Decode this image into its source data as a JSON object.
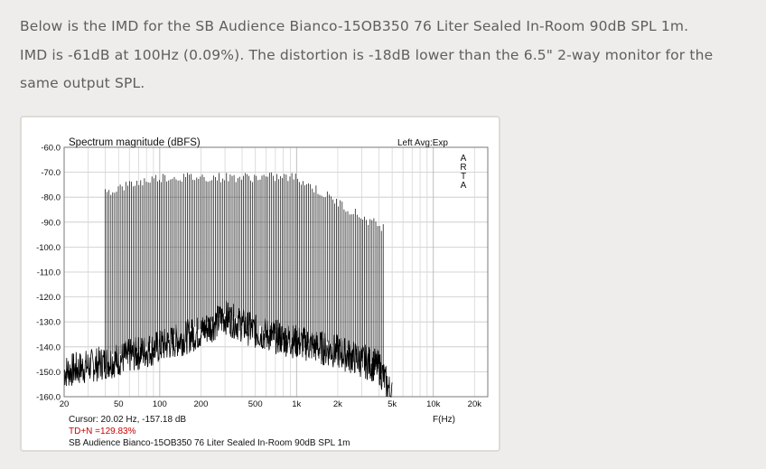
{
  "intro": {
    "line1": "Below is the IMD for the SB Audience Bianco-15OB350 76 Liter Sealed In-Room 90dB SPL 1m.",
    "line2": "IMD is -61dB at 100Hz (0.09%). The distortion is -18dB lower than the 6.5\" 2-way monitor for the",
    "line3": "same output SPL."
  },
  "chart_data": {
    "type": "line",
    "title": "Spectrum magnitude (dBFS)",
    "mode_label": "Left Avg:Exp",
    "brand_label": "ARTA",
    "xlabel": "F(Hz)",
    "ylabel": "",
    "x_scale": "log",
    "xlim": [
      20,
      25000
    ],
    "ylim": [
      -160,
      -60
    ],
    "grid": true,
    "y_ticks": [
      "-60.0",
      "-70.0",
      "-80.0",
      "-90.0",
      "-100.0",
      "-110.0",
      "-120.0",
      "-130.0",
      "-140.0",
      "-150.0",
      "-160.0"
    ],
    "y_tick_values": [
      -60,
      -70,
      -80,
      -90,
      -100,
      -110,
      -120,
      -130,
      -140,
      -150,
      -160
    ],
    "x_ticks": [
      "20",
      "50",
      "100",
      "200",
      "500",
      "1k",
      "2k",
      "5k",
      "10k",
      "20k"
    ],
    "x_tick_values": [
      20,
      50,
      100,
      200,
      500,
      1000,
      2000,
      5000,
      10000,
      20000
    ],
    "cursor_text": "Cursor: 20.02 Hz, -157.18 dB",
    "tdn_text": "TD+N =129.83%",
    "caption": "SB Audience Bianco-15OB350 76 Liter Sealed In-Room 90dB SPL 1m",
    "series": [
      {
        "color": "#000000",
        "multitone_peaks": {
          "f_start": 40,
          "f_end": 4300,
          "level_at_100_to_1k": -72,
          "rolloff_points": [
            [
              40,
              -78
            ],
            [
              60,
              -75
            ],
            [
              100,
              -72
            ],
            [
              1000,
              -72
            ],
            [
              1500,
              -78
            ],
            [
              2000,
              -82
            ],
            [
              3000,
              -88
            ],
            [
              4300,
              -92
            ]
          ]
        },
        "noise_floor": [
          [
            20,
            -150
          ],
          [
            50,
            -145
          ],
          [
            100,
            -140
          ],
          [
            200,
            -134
          ],
          [
            300,
            -128
          ],
          [
            500,
            -134
          ],
          [
            1000,
            -138
          ],
          [
            2000,
            -142
          ],
          [
            4000,
            -148
          ],
          [
            5000,
            -160
          ]
        ]
      }
    ]
  }
}
